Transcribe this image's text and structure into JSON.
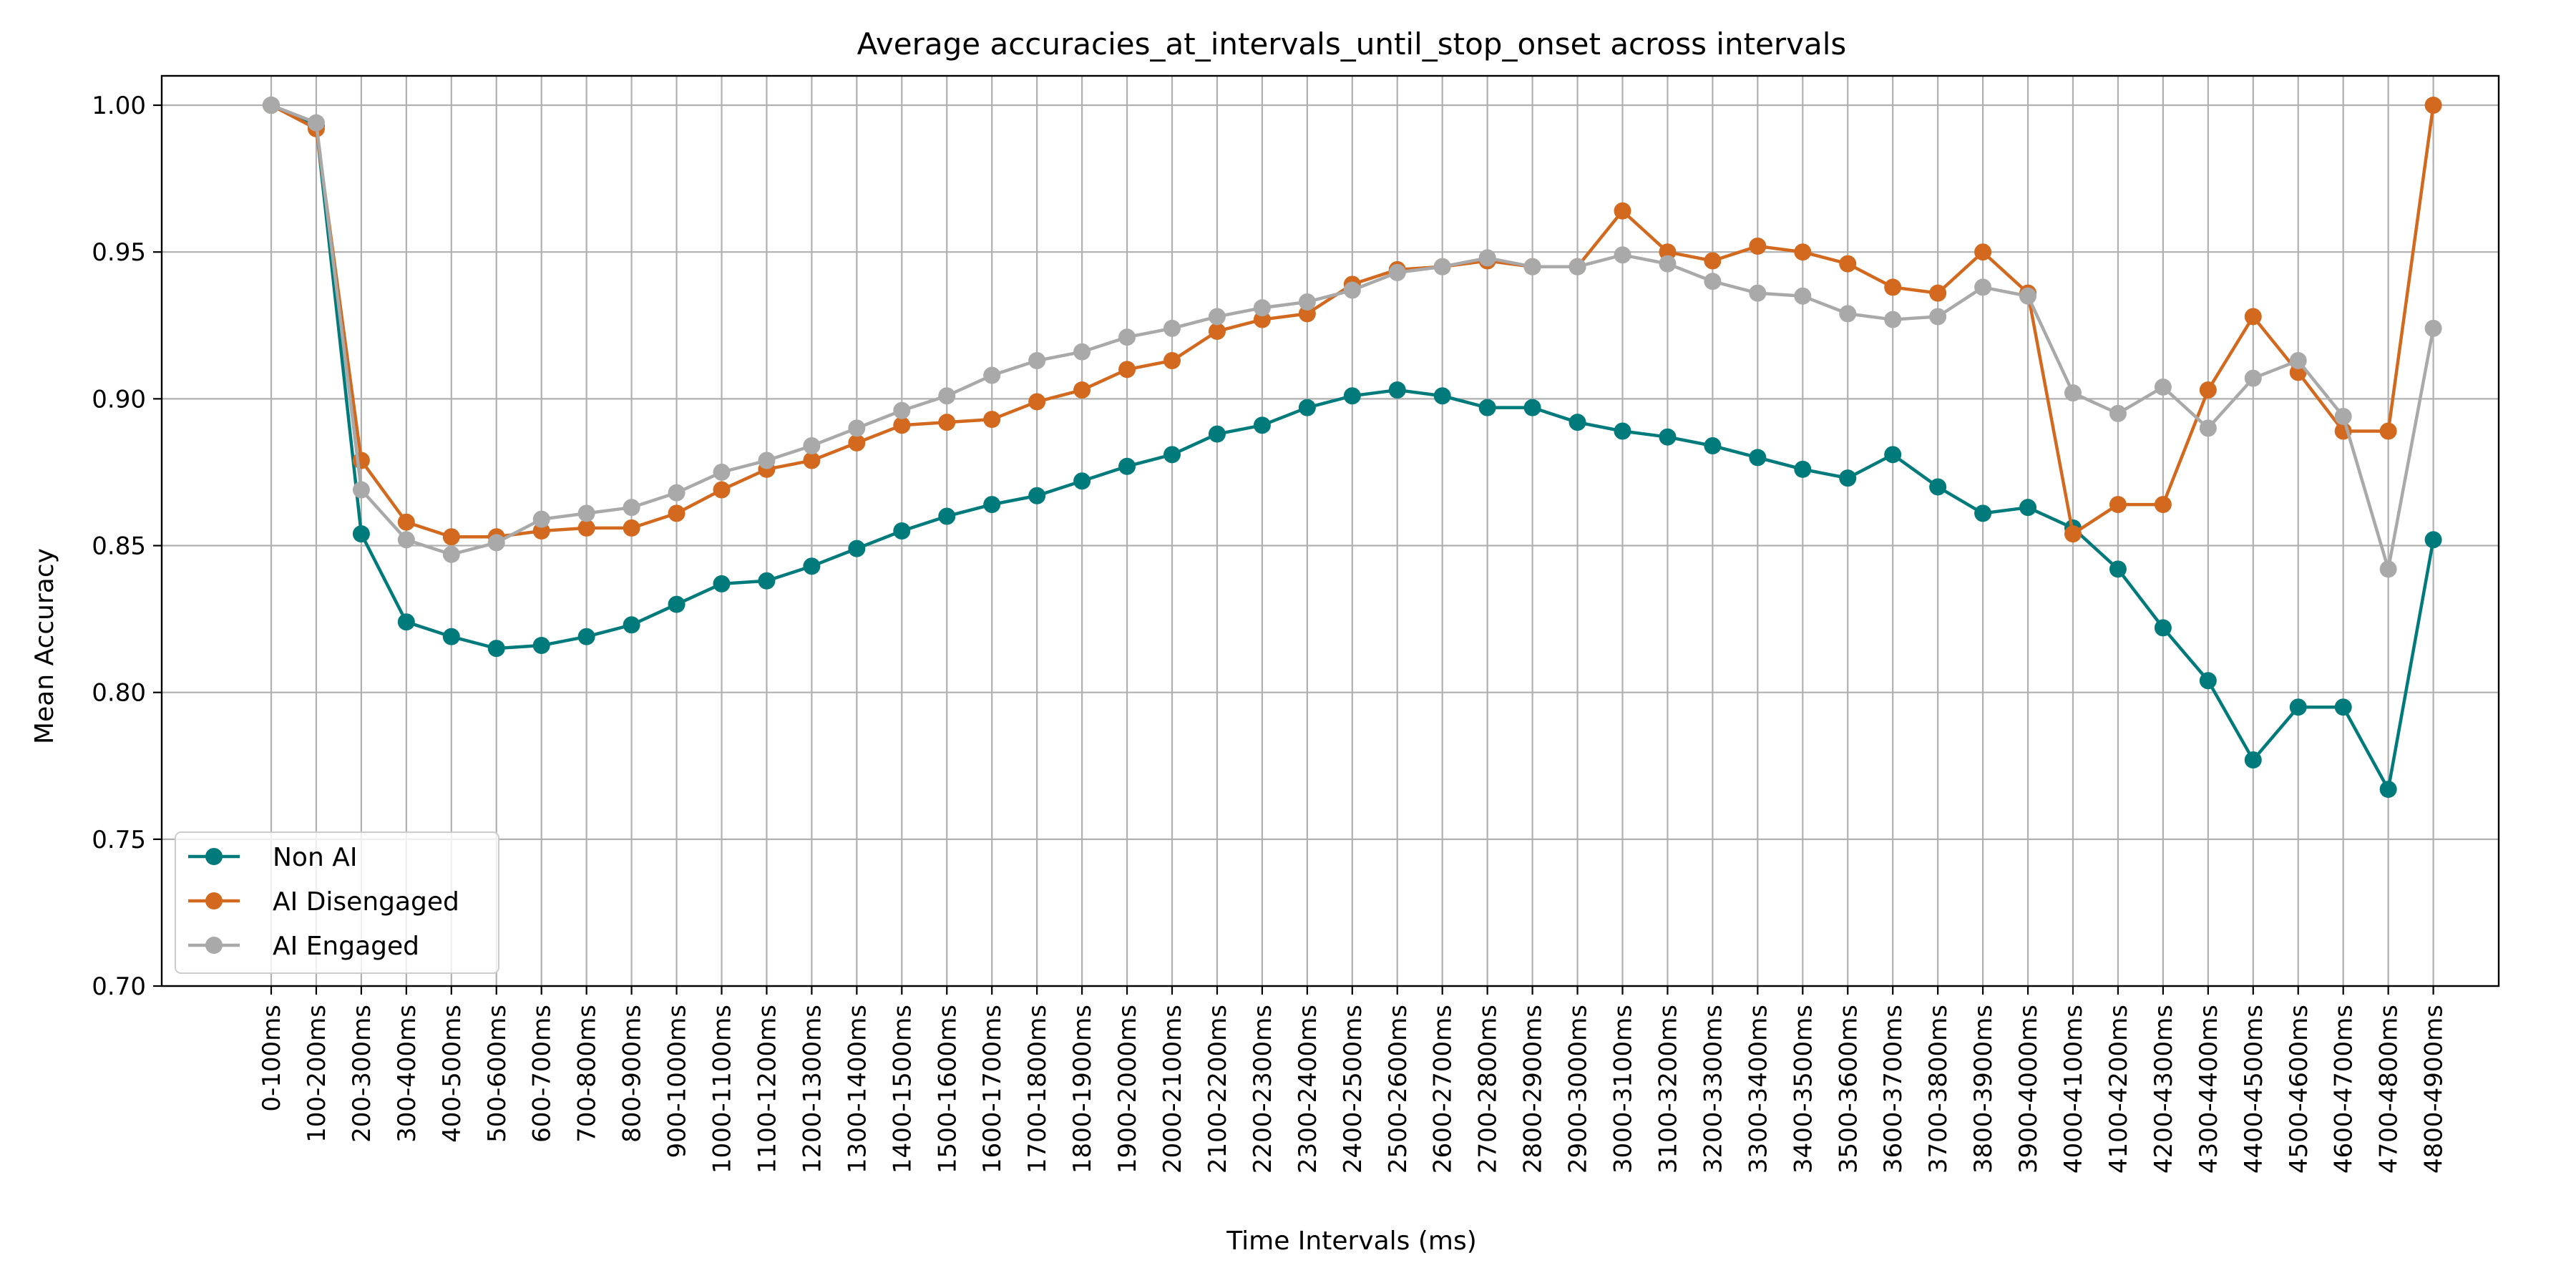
{
  "chart_data": {
    "type": "line",
    "title": "Average accuracies_at_intervals_until_stop_onset across intervals",
    "xlabel": "Time Intervals (ms)",
    "ylabel": "Mean Accuracy",
    "ylim": [
      0.7,
      1.01
    ],
    "yticks": [
      "0.70",
      "0.75",
      "0.80",
      "0.85",
      "0.90",
      "0.95",
      "1.00"
    ],
    "grid": true,
    "legend_position": "lower-left",
    "categories": [
      "0-100ms",
      "100-200ms",
      "200-300ms",
      "300-400ms",
      "400-500ms",
      "500-600ms",
      "600-700ms",
      "700-800ms",
      "800-900ms",
      "900-1000ms",
      "1000-1100ms",
      "1100-1200ms",
      "1200-1300ms",
      "1300-1400ms",
      "1400-1500ms",
      "1500-1600ms",
      "1600-1700ms",
      "1700-1800ms",
      "1800-1900ms",
      "1900-2000ms",
      "2000-2100ms",
      "2100-2200ms",
      "2200-2300ms",
      "2300-2400ms",
      "2400-2500ms",
      "2500-2600ms",
      "2600-2700ms",
      "2700-2800ms",
      "2800-2900ms",
      "2900-3000ms",
      "3000-3100ms",
      "3100-3200ms",
      "3200-3300ms",
      "3300-3400ms",
      "3400-3500ms",
      "3500-3600ms",
      "3600-3700ms",
      "3700-3800ms",
      "3800-3900ms",
      "3900-4000ms",
      "4000-4100ms",
      "4100-4200ms",
      "4200-4300ms",
      "4300-4400ms",
      "4400-4500ms",
      "4500-4600ms",
      "4600-4700ms",
      "4700-4800ms",
      "4800-4900ms"
    ],
    "series": [
      {
        "name": "Non AI",
        "color": "#007a7a",
        "values": [
          1.0,
          0.993,
          0.854,
          0.824,
          0.819,
          0.815,
          0.816,
          0.819,
          0.823,
          0.83,
          0.837,
          0.838,
          0.843,
          0.849,
          0.855,
          0.86,
          0.864,
          0.867,
          0.872,
          0.877,
          0.881,
          0.888,
          0.891,
          0.897,
          0.901,
          0.903,
          0.901,
          0.897,
          0.897,
          0.892,
          0.889,
          0.887,
          0.884,
          0.88,
          0.876,
          0.873,
          0.881,
          0.87,
          0.861,
          0.863,
          0.856,
          0.842,
          0.822,
          0.804,
          0.777,
          0.795,
          0.795,
          0.767,
          0.852
        ]
      },
      {
        "name": "AI Disengaged",
        "color": "#d2691e",
        "values": [
          1.0,
          0.992,
          0.879,
          0.858,
          0.853,
          0.853,
          0.855,
          0.856,
          0.856,
          0.861,
          0.869,
          0.876,
          0.879,
          0.885,
          0.891,
          0.892,
          0.893,
          0.899,
          0.903,
          0.91,
          0.913,
          0.923,
          0.927,
          0.929,
          0.939,
          0.944,
          0.945,
          0.947,
          0.945,
          0.945,
          0.964,
          0.95,
          0.947,
          0.952,
          0.95,
          0.946,
          0.938,
          0.936,
          0.95,
          0.936,
          0.854,
          0.864,
          0.864,
          0.903,
          0.928,
          0.909,
          0.889,
          0.889,
          1.0
        ]
      },
      {
        "name": "AI Engaged",
        "color": "#a9a9a9",
        "values": [
          1.0,
          0.994,
          0.869,
          0.852,
          0.847,
          0.851,
          0.859,
          0.861,
          0.863,
          0.868,
          0.875,
          0.879,
          0.884,
          0.89,
          0.896,
          0.901,
          0.908,
          0.913,
          0.916,
          0.921,
          0.924,
          0.928,
          0.931,
          0.933,
          0.937,
          0.943,
          0.945,
          0.948,
          0.945,
          0.945,
          0.949,
          0.946,
          0.94,
          0.936,
          0.935,
          0.929,
          0.927,
          0.928,
          0.938,
          0.935,
          0.902,
          0.895,
          0.904,
          0.89,
          0.907,
          0.913,
          0.894,
          0.842,
          0.924
        ]
      }
    ]
  }
}
